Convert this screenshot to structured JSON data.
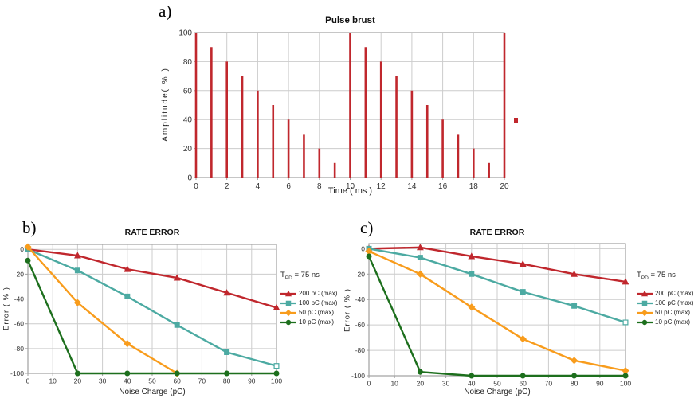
{
  "panels": {
    "a": {
      "label": "a)"
    },
    "b": {
      "label": "b)"
    },
    "c": {
      "label": "c)"
    }
  },
  "colors": {
    "red": "#c0272d",
    "teal": "#4caaa2",
    "orange": "#f89c1c",
    "green": "#1d6f1d",
    "grid": "#cccccc",
    "axis": "#a0a0a0",
    "tick_text": "#333333"
  },
  "stray_marker_color": "#c0272d",
  "chart_data": [
    {
      "id": "pulse",
      "type": "bar",
      "title": "Pulse brust",
      "xlabel": "Time ( ms )",
      "ylabel": "Amplitude( % )",
      "x": [
        0,
        1,
        2,
        3,
        4,
        5,
        6,
        7,
        8,
        9,
        10,
        11,
        12,
        13,
        14,
        15,
        16,
        17,
        18,
        19,
        20
      ],
      "values": [
        100,
        90,
        80,
        70,
        60,
        50,
        40,
        30,
        20,
        10,
        100,
        90,
        80,
        70,
        60,
        50,
        40,
        30,
        20,
        10,
        100
      ],
      "xlim": [
        0,
        20
      ],
      "ylim": [
        0,
        100
      ],
      "xticks": [
        0,
        2,
        4,
        6,
        8,
        10,
        12,
        14,
        16,
        18,
        20
      ],
      "yticks": [
        0,
        20,
        40,
        60,
        80,
        100
      ],
      "grid": true,
      "bar_color": "#c0272d"
    },
    {
      "id": "rate_b",
      "type": "line",
      "title": "RATE ERROR",
      "xlabel": "Noise Charge (pC)",
      "ylabel": "Error ( % )",
      "xlim": [
        0,
        100
      ],
      "ylim": [
        -100,
        4
      ],
      "xticks": [
        0,
        10,
        20,
        30,
        40,
        50,
        60,
        70,
        80,
        90,
        100
      ],
      "yticks": [
        0,
        -20,
        -40,
        -60,
        -80,
        -100
      ],
      "grid": true,
      "legend_title": {
        "pre": "T",
        "sub": "PD",
        "post": " = 75 ns"
      },
      "x": [
        0,
        20,
        40,
        60,
        80,
        100
      ],
      "series": [
        {
          "name": "200 pC (max)",
          "color": "#c0272d",
          "marker": "triangle",
          "y": [
            0,
            -5,
            -16,
            -23,
            -35,
            -47
          ]
        },
        {
          "name": "100 pC (max)",
          "color": "#4caaa2",
          "marker": "square",
          "last_marker_open": true,
          "y": [
            0,
            -17,
            -38,
            -61,
            -83,
            -94
          ]
        },
        {
          "name": "50 pC (max)",
          "color": "#f89c1c",
          "marker": "diamond",
          "x": [
            0,
            20,
            40,
            60
          ],
          "y": [
            2,
            -43,
            -76,
            -100
          ]
        },
        {
          "name": "10 pC (max)",
          "color": "#1d6f1d",
          "marker": "circle",
          "y": [
            -9,
            -100,
            -100,
            -100,
            -100,
            -100
          ]
        }
      ]
    },
    {
      "id": "rate_c",
      "type": "line",
      "title": "RATE ERROR",
      "xlabel": "Noise Charge (pC)",
      "ylabel": "Error ( % )",
      "xlim": [
        0,
        100
      ],
      "ylim": [
        -100,
        4
      ],
      "xticks": [
        0,
        10,
        20,
        30,
        40,
        50,
        60,
        70,
        80,
        90,
        100
      ],
      "yticks": [
        0,
        -20,
        -40,
        -60,
        -80,
        -100
      ],
      "grid": true,
      "legend_title": {
        "pre": "T",
        "sub": "PD",
        "post": " = 75 ns"
      },
      "x": [
        0,
        20,
        40,
        60,
        80,
        100
      ],
      "series": [
        {
          "name": "200 pC (max)",
          "color": "#c0272d",
          "marker": "triangle",
          "y": [
            0,
            1,
            -6,
            -12,
            -20,
            -26
          ]
        },
        {
          "name": "100 pC (max)",
          "color": "#4caaa2",
          "marker": "square",
          "last_marker_open": true,
          "y": [
            0,
            -7,
            -20,
            -34,
            -45,
            -58
          ]
        },
        {
          "name": "50 pC (max)",
          "color": "#f89c1c",
          "marker": "diamond",
          "y": [
            -2,
            -20,
            -46,
            -71,
            -88,
            -96
          ]
        },
        {
          "name": "10 pC (max)",
          "color": "#1d6f1d",
          "marker": "circle",
          "y": [
            -6,
            -97,
            -100,
            -100,
            -100,
            -100
          ]
        }
      ]
    }
  ]
}
